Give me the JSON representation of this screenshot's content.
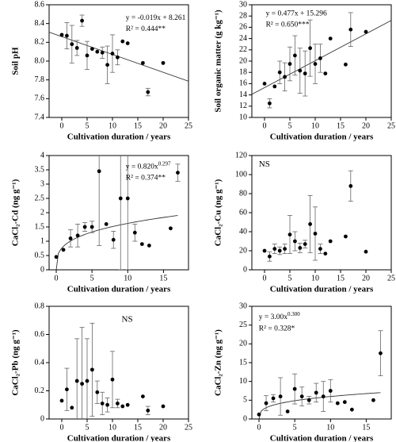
{
  "chart_data": [
    {
      "type": "scatter",
      "y_label": "Soil pH",
      "x_label": "Cultivation duration / years",
      "x": [
        0,
        1,
        2,
        3,
        4,
        5,
        6,
        7,
        8,
        9,
        10,
        11,
        12,
        13,
        16,
        17,
        20
      ],
      "values": [
        8.28,
        8.27,
        8.18,
        8.14,
        8.43,
        8.06,
        8.13,
        8.1,
        8.09,
        7.96,
        8.08,
        8.04,
        8.21,
        8.19,
        7.98,
        7.67,
        7.98
      ],
      "errors": [
        null,
        0.14,
        0.2,
        0.08,
        0.06,
        0.15,
        null,
        null,
        0.06,
        0.2,
        0.2,
        0.08,
        null,
        null,
        null,
        0.04,
        null
      ],
      "xlim": [
        -2.5,
        25
      ],
      "xticks": [
        0,
        5,
        10,
        15,
        20,
        25
      ],
      "ylim": [
        7.4,
        8.6
      ],
      "yticks": [
        7.4,
        7.6,
        7.8,
        {
          "value": 8,
          "label": "8.0"
        },
        8.2,
        8.4,
        8.6
      ],
      "fit": {
        "kind": "linear",
        "a": -0.019,
        "b": 8.261
      },
      "equation": "y = -0.019x + 8.261",
      "r2": "R² = 0.444**",
      "color": "#000000"
    },
    {
      "type": "scatter",
      "y_label": "Soil organic matter (g kg⁻¹)",
      "x_label": "Cultivation duration / years",
      "x": [
        0,
        1,
        2,
        3,
        4,
        5,
        6,
        7,
        8,
        9,
        10,
        11,
        12,
        13,
        16,
        17,
        20
      ],
      "values": [
        16,
        12.5,
        15.5,
        18,
        17.2,
        19.5,
        21,
        18.3,
        17.8,
        22.3,
        19.5,
        20.5,
        17.8,
        24,
        19.4,
        25.6,
        25.2
      ],
      "errors": [
        null,
        0.8,
        null,
        2,
        2.5,
        3,
        3.5,
        4,
        4,
        5,
        3.5,
        2.5,
        null,
        null,
        null,
        3,
        null
      ],
      "xlim": [
        -2.5,
        25
      ],
      "xticks": [
        0,
        5,
        10,
        15,
        20,
        25
      ],
      "ylim": [
        10,
        30
      ],
      "yticks": [
        10,
        12,
        14,
        16,
        18,
        20,
        22,
        24,
        26,
        28,
        30
      ],
      "fit": {
        "kind": "linear",
        "a": 0.477,
        "b": 15.296
      },
      "equation": "y = 0.477x + 15.296",
      "r2": "R² = 0.650***",
      "color": "#000000"
    },
    {
      "type": "scatter",
      "y_label": "CaCl₂-Cd (ng g⁻¹)",
      "x_label": "Cultivation duration / years",
      "x": [
        0,
        1,
        2,
        3,
        4,
        5,
        6,
        7,
        8,
        9,
        10,
        11,
        12,
        13,
        16,
        17
      ],
      "values": [
        0.45,
        0.7,
        1.1,
        1.2,
        1.5,
        1.5,
        3.45,
        1.6,
        1.05,
        2.5,
        2.5,
        1.3,
        0.9,
        0.85,
        1.45,
        3.4
      ],
      "errors": [
        null,
        null,
        0.3,
        0.4,
        0.15,
        0.2,
        2.6,
        null,
        0.3,
        2.5,
        2.5,
        0.3,
        null,
        null,
        null,
        0.3
      ],
      "xlim": [
        -1,
        18.5
      ],
      "xticks": [
        0,
        5,
        10,
        15
      ],
      "ylim": [
        0,
        4
      ],
      "yticks": [
        0,
        0.5,
        1,
        1.5,
        2,
        2.5,
        3,
        3.5,
        4
      ],
      "fit": {
        "kind": "power",
        "a": 0.82,
        "b": 0.297
      },
      "equation_base": "y = 0.820x",
      "equation_exponent": "0.297",
      "r2": "R² = 0.374**",
      "color": "#000000"
    },
    {
      "type": "scatter",
      "y_label": "CaCl₂-Cu (ng g⁻¹)",
      "x_label": "Cultivation duration / years",
      "x": [
        0,
        1,
        2,
        3,
        4,
        5,
        6,
        7,
        8,
        9,
        10,
        11,
        12,
        13,
        16,
        17,
        20
      ],
      "values": [
        20,
        14,
        22,
        20,
        22,
        37,
        30,
        23,
        27,
        48,
        38,
        22,
        17,
        30,
        35,
        88,
        19
      ],
      "errors": [
        null,
        5,
        5,
        4,
        5,
        20,
        10,
        5,
        4,
        30,
        28,
        5,
        null,
        null,
        null,
        16,
        null
      ],
      "xlim": [
        -2.5,
        25
      ],
      "xticks": [
        0,
        5,
        10,
        15,
        20,
        25
      ],
      "ylim": [
        0,
        120
      ],
      "yticks": [
        0,
        20,
        40,
        60,
        80,
        100,
        120
      ],
      "note": "NS",
      "color": "#000000"
    },
    {
      "type": "scatter",
      "y_label": "CaCl₂-Pb (ng g⁻¹)",
      "x_label": "Cultivation duration / years",
      "x": [
        0,
        1,
        2,
        3,
        4,
        5,
        6,
        7,
        8,
        9,
        10,
        11,
        12,
        13,
        16,
        17,
        20
      ],
      "values": [
        0.13,
        0.21,
        0.08,
        0.27,
        0.25,
        0.27,
        0.35,
        0.19,
        0.11,
        0.1,
        0.28,
        0.11,
        0.09,
        0.1,
        0.16,
        0.06,
        0.09
      ],
      "errors": [
        null,
        0.15,
        null,
        0.3,
        0.4,
        0.3,
        0.33,
        0.08,
        0.08,
        0.05,
        0.2,
        0.03,
        null,
        null,
        null,
        0.03,
        null
      ],
      "xlim": [
        -2.5,
        25
      ],
      "xticks": [
        0,
        5,
        10,
        15,
        20,
        25
      ],
      "ylim": [
        0,
        0.8
      ],
      "yticks": [
        0,
        0.2,
        0.4,
        0.6,
        0.8
      ],
      "note": "NS",
      "color": "#000000"
    },
    {
      "type": "scatter",
      "y_label": "CaCl₂-Zn (ng g⁻¹)",
      "x_label": "Cultivation duration / years",
      "x": [
        0,
        1,
        2,
        3,
        4,
        5,
        6,
        7,
        8,
        9,
        10,
        11,
        12,
        13,
        16,
        17
      ],
      "values": [
        1.2,
        4.2,
        5.5,
        6,
        2,
        8,
        6,
        5,
        7,
        6,
        7.5,
        4.2,
        4.5,
        2.5,
        5,
        17.5
      ],
      "errors": [
        null,
        2,
        1,
        5,
        null,
        4,
        2.5,
        1,
        2.5,
        4,
        3,
        null,
        null,
        null,
        null,
        6
      ],
      "xlim": [
        -1,
        18.5
      ],
      "xticks": [
        0,
        5,
        10,
        15
      ],
      "ylim": [
        0,
        30
      ],
      "yticks": [
        0,
        5,
        10,
        15,
        20,
        25,
        30
      ],
      "fit": {
        "kind": "power",
        "a": 3,
        "b": 0.3
      },
      "equation_base": "y = 3.00x",
      "equation_exponent": "0.300",
      "r2": "R² = 0.328*",
      "color": "#000000"
    }
  ]
}
